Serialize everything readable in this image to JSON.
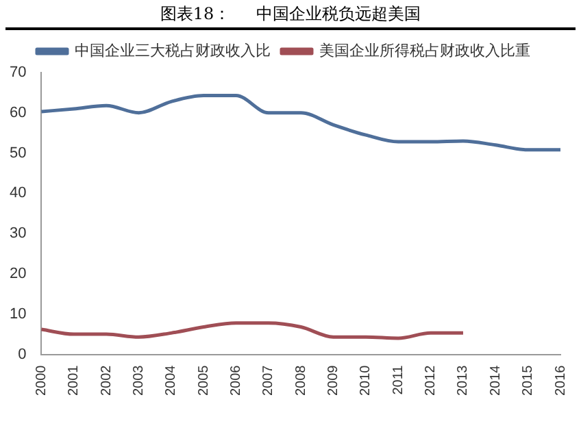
{
  "chart_data": {
    "type": "line",
    "title": "图表18：     中国企业税负远超美国",
    "categories": [
      "2000",
      "2001",
      "2002",
      "2003",
      "2004",
      "2005",
      "2006",
      "2007",
      "2008",
      "2009",
      "2010",
      "2011",
      "2012",
      "2013",
      "2014",
      "2015",
      "2016"
    ],
    "series": [
      {
        "name": "中国企业三大税占财政收入比",
        "color": "#4f6f9a",
        "values": [
          60.3,
          61,
          61.8,
          60,
          62.8,
          64.3,
          64.3,
          60,
          60,
          57,
          54.5,
          52.8,
          52.8,
          53,
          52,
          50.8,
          50.8
        ]
      },
      {
        "name": "美国企业所得税占财政收入比重",
        "color": "#a04e55",
        "values": [
          6.2,
          5,
          5,
          4.3,
          5.3,
          6.8,
          7.8,
          7.8,
          6.8,
          4.3,
          4.3,
          4,
          5.3,
          5.3,
          null,
          null,
          null
        ]
      }
    ],
    "ylim": [
      0,
      70
    ],
    "yticks": [
      0,
      10,
      20,
      30,
      40,
      50,
      60,
      70
    ],
    "grid": false,
    "legend": "top",
    "marker": "none",
    "line_style": "solid"
  }
}
